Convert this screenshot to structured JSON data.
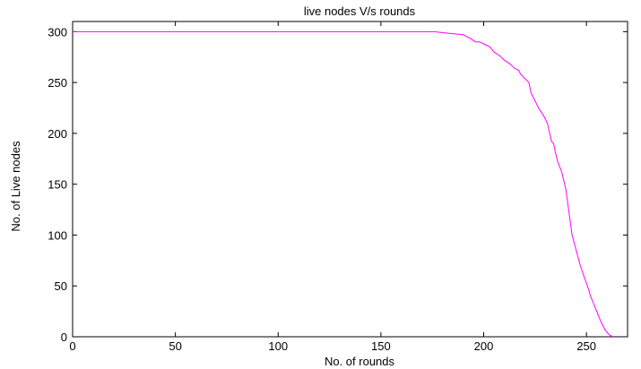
{
  "chart_data": {
    "type": "line",
    "title": "live nodes V/s  rounds",
    "xlabel": "No. of rounds",
    "ylabel": "No. of Live nodes",
    "xlim": [
      0,
      270
    ],
    "ylim": [
      0,
      310
    ],
    "xticks": [
      0,
      50,
      100,
      150,
      200,
      250
    ],
    "yticks": [
      0,
      50,
      100,
      150,
      200,
      250,
      300
    ],
    "grid": false,
    "line_color": "#ff00ff",
    "series": [
      {
        "x": [
          0,
          176,
          180,
          185,
          190,
          193,
          196,
          198,
          200,
          203,
          205,
          208,
          210,
          213,
          215,
          217,
          218,
          220,
          222,
          223,
          225,
          227,
          229,
          231,
          233,
          234,
          235,
          236,
          238,
          240,
          241,
          242,
          243,
          245,
          247,
          249,
          251,
          252,
          253,
          255,
          257,
          259,
          261,
          262,
          263
        ],
        "y": [
          300,
          300,
          299,
          298,
          297,
          294,
          290,
          290,
          288,
          285,
          280,
          276,
          272,
          268,
          264,
          262,
          258,
          254,
          250,
          240,
          232,
          224,
          218,
          210,
          192,
          190,
          180,
          172,
          162,
          145,
          130,
          115,
          100,
          85,
          70,
          58,
          47,
          40,
          35,
          25,
          15,
          7,
          2,
          1,
          0
        ]
      }
    ]
  }
}
